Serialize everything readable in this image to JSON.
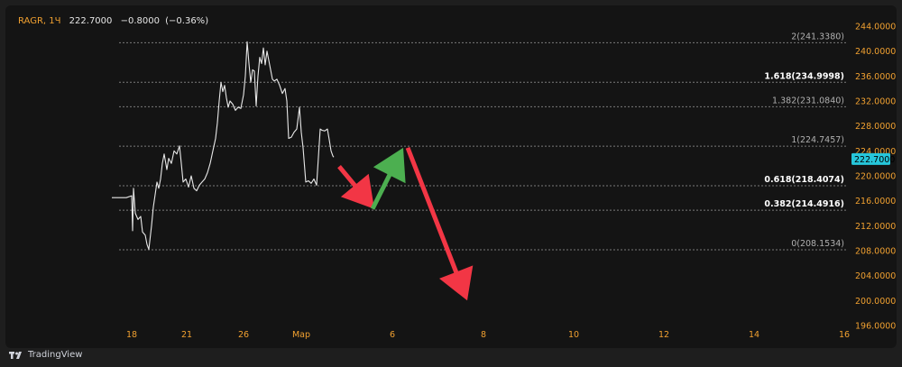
{
  "header": {
    "symbol": "RAGR",
    "interval": "1Ч",
    "price": "222.7000",
    "change": "−0.8000",
    "change_pct": "(−0.36%)"
  },
  "brand": {
    "name": "TradingView"
  },
  "colors": {
    "background": "#141414",
    "price_line": "#e8e8e8",
    "level_line": "#7a7a7a",
    "axis_text": "#f0a030",
    "last_price_badge": "#26c6da",
    "arrow_down": "#f23645",
    "arrow_up": "#4caf50"
  },
  "chart_data": {
    "type": "line",
    "y_axis": {
      "range": [
        195,
        246
      ],
      "ticks": [
        "244.0000",
        "240.0000",
        "236.0000",
        "232.0000",
        "228.0000",
        "224.0000",
        "220.0000",
        "216.0000",
        "212.0000",
        "208.0000",
        "204.0000",
        "200.0000",
        "196.0000"
      ]
    },
    "x_axis": {
      "ticks": [
        "18",
        "21",
        "26",
        "Мар",
        "6",
        "8",
        "10",
        "12",
        "14",
        "16"
      ]
    },
    "last_price": {
      "value": 222.7,
      "label": "222.7000"
    },
    "fib_levels": [
      {
        "label": "2(241.3380)",
        "value": 241.338,
        "bold": false
      },
      {
        "label": "1.618(234.9998)",
        "value": 234.9998,
        "bold": true
      },
      {
        "label": "1.382(231.0840)",
        "value": 231.084,
        "bold": false
      },
      {
        "label": "1(224.7457)",
        "value": 224.7457,
        "bold": false
      },
      {
        "label": "0.618(218.4074)",
        "value": 218.4074,
        "bold": true
      },
      {
        "label": "0.382(214.4916)",
        "value": 214.4916,
        "bold": true
      },
      {
        "label": "0(208.1534)",
        "value": 208.1534,
        "bold": false
      }
    ],
    "series": [
      {
        "values": [
          [
            124,
            216.5
          ],
          [
            140,
            216.5
          ],
          [
            146,
            216.8
          ],
          [
            147,
            211.2
          ],
          [
            148,
            218
          ],
          [
            150,
            214
          ],
          [
            153,
            213
          ],
          [
            156,
            213.5
          ],
          [
            158,
            211
          ],
          [
            161,
            210.5
          ],
          [
            163,
            209
          ],
          [
            165,
            208.2
          ],
          [
            168,
            212
          ],
          [
            170,
            215
          ],
          [
            172,
            217
          ],
          [
            174,
            219
          ],
          [
            176,
            218
          ],
          [
            178,
            219.5
          ],
          [
            180,
            222
          ],
          [
            182,
            223.5
          ],
          [
            185,
            221
          ],
          [
            187,
            222.8
          ],
          [
            190,
            222
          ],
          [
            193,
            224
          ],
          [
            196,
            223.5
          ],
          [
            199,
            224.8
          ],
          [
            201,
            222
          ],
          [
            203,
            219
          ],
          [
            206,
            219.5
          ],
          [
            209,
            218.2
          ],
          [
            212,
            220
          ],
          [
            215,
            218
          ],
          [
            218,
            217.6
          ],
          [
            221,
            218.5
          ],
          [
            224,
            219
          ],
          [
            227,
            219.5
          ],
          [
            230,
            220.5
          ],
          [
            233,
            222
          ],
          [
            236,
            224
          ],
          [
            239,
            226
          ],
          [
            241,
            228.5
          ],
          [
            243,
            232
          ],
          [
            245,
            235
          ],
          [
            247,
            233.5
          ],
          [
            249,
            234.5
          ],
          [
            251,
            232.5
          ],
          [
            253,
            231
          ],
          [
            255,
            232
          ],
          [
            258,
            231.5
          ],
          [
            261,
            230.5
          ],
          [
            264,
            231
          ],
          [
            267,
            230.8
          ],
          [
            270,
            233
          ],
          [
            272,
            236
          ],
          [
            274,
            241.5
          ],
          [
            276,
            238
          ],
          [
            278,
            235
          ],
          [
            280,
            237
          ],
          [
            282,
            236.8
          ],
          [
            284,
            231.2
          ],
          [
            286,
            236
          ],
          [
            288,
            239
          ],
          [
            290,
            238
          ],
          [
            292,
            240.5
          ],
          [
            294,
            237.8
          ],
          [
            296,
            240
          ],
          [
            298,
            238.5
          ],
          [
            300,
            237
          ],
          [
            302,
            235.5
          ],
          [
            304,
            235.2
          ],
          [
            307,
            235.5
          ],
          [
            310,
            234.5
          ],
          [
            313,
            233.2
          ],
          [
            316,
            234
          ],
          [
            318,
            232
          ],
          [
            320,
            226
          ],
          [
            323,
            226.2
          ],
          [
            326,
            227
          ],
          [
            329,
            227.5
          ],
          [
            332,
            231
          ],
          [
            334,
            227
          ],
          [
            336,
            224.5
          ],
          [
            339,
            219
          ],
          [
            342,
            219.2
          ],
          [
            345,
            218.8
          ],
          [
            348,
            219.5
          ],
          [
            351,
            218.5
          ],
          [
            353,
            223
          ],
          [
            355,
            227.5
          ],
          [
            357,
            227.3
          ],
          [
            360,
            227.2
          ],
          [
            363,
            227.5
          ],
          [
            365,
            225.8
          ],
          [
            367,
            224
          ],
          [
            369,
            223.2
          ],
          [
            370,
            223
          ]
        ]
      }
    ],
    "annotations": [
      {
        "type": "arrow",
        "direction": "down",
        "color": "red",
        "from": [
          376,
          221.5
        ],
        "to": [
          415,
          214.7
        ]
      },
      {
        "type": "arrow",
        "direction": "up",
        "color": "green",
        "from": [
          413,
          214.7
        ],
        "to": [
          447,
          224.5
        ]
      },
      {
        "type": "arrow",
        "direction": "down",
        "color": "red",
        "from": [
          452,
          224.5
        ],
        "to": [
          518,
          200
        ]
      }
    ]
  }
}
